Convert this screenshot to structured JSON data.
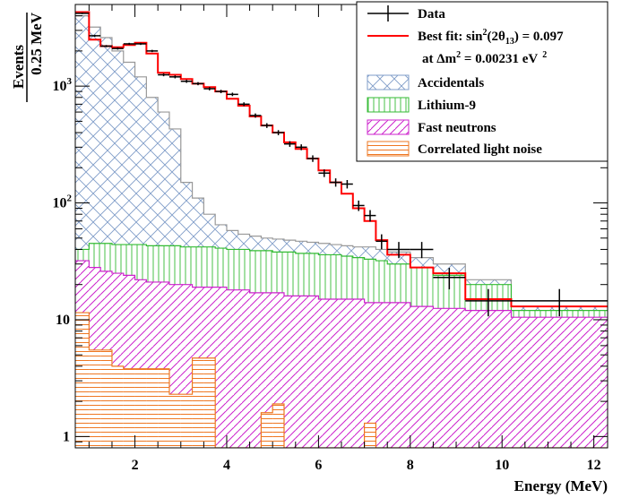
{
  "chart_data": {
    "type": "stacked-histogram",
    "xlabel": "Energy (MeV)",
    "ylabel_numerator": "Events",
    "ylabel_denominator": "0.25 MeV",
    "x_ticks": [
      "2",
      "4",
      "6",
      "8",
      "10",
      "12"
    ],
    "y_ticks": [
      "1",
      "10",
      "10",
      "10"
    ],
    "y_tick_exponents": [
      "",
      "",
      "2",
      "3"
    ],
    "xlim": [
      0.7,
      12.3
    ],
    "ylim": [
      0.8,
      5000
    ],
    "y_scale": "log",
    "grid": false,
    "legend_position": "top-right",
    "legend": {
      "data": "Data",
      "fit_line1_prefix": "Best fit: sin",
      "fit_line1_sup": "2",
      "fit_line1_mid": "(2θ",
      "fit_line1_sub": "13",
      "fit_line1_suffix": ") = 0.097",
      "fit_line2_prefix": "at Δm",
      "fit_line2_sup": "2",
      "fit_line2_mid": " = 0.00231 eV",
      "fit_line2_sup2": "2",
      "accidentals": "Accidentals",
      "lithium": "Lithium-9",
      "fastn": "Fast neutrons",
      "light": "Correlated light noise"
    },
    "colors": {
      "accidentals": "#7f9cc8",
      "lithium": "#33bb33",
      "fast_neutrons": "#cc22cc",
      "light_noise": "#ee7722",
      "fit": "#ff0000",
      "data": "#000000"
    },
    "bin_edges": [
      0.7,
      1.0,
      1.25,
      1.5,
      1.75,
      2.0,
      2.25,
      2.5,
      2.75,
      3.0,
      3.25,
      3.5,
      3.75,
      4.0,
      4.25,
      4.5,
      4.75,
      5.0,
      5.25,
      5.5,
      5.75,
      6.0,
      6.25,
      6.5,
      6.75,
      7.0,
      7.25,
      7.5,
      8.0,
      8.5,
      9.2,
      10.2,
      12.3
    ],
    "light_noise": [
      11.5,
      5.5,
      5.5,
      4.0,
      3.8,
      3.8,
      3.8,
      3.8,
      2.3,
      2.3,
      4.7,
      4.7,
      0.8,
      0.8,
      0.8,
      0.8,
      1.6,
      1.9,
      0.8,
      0.8,
      0.8,
      0.8,
      0.8,
      0.8,
      0.8,
      1.3,
      0.8,
      0.8,
      0.8,
      0.8,
      0.8,
      0.8
    ],
    "fast_neutrons": [
      32,
      28,
      26,
      25,
      24,
      22,
      21,
      21,
      20,
      20,
      19,
      19,
      19,
      18,
      18,
      17,
      17,
      17,
      16,
      16,
      16,
      15,
      15,
      15,
      15,
      14,
      14,
      14,
      13,
      12.5,
      12,
      10.5
    ],
    "lithium_9": [
      40,
      45,
      45,
      44,
      44,
      44,
      43,
      43,
      43,
      42,
      42,
      42,
      41,
      40,
      40,
      39,
      39,
      38,
      38,
      37,
      37,
      36,
      36,
      35,
      34,
      33,
      32,
      30,
      28,
      24,
      20,
      12
    ],
    "accidentals_top": [
      4000,
      3200,
      2600,
      2000,
      1600,
      1200,
      800,
      600,
      430,
      150,
      110,
      80,
      65,
      58,
      54,
      52,
      50,
      49,
      48,
      47,
      46,
      45,
      44,
      43,
      42,
      42,
      40,
      38,
      34,
      30,
      22,
      13
    ],
    "best_fit": [
      4300,
      2500,
      2200,
      2150,
      2250,
      2350,
      1900,
      1300,
      1250,
      1150,
      1050,
      980,
      900,
      780,
      680,
      550,
      460,
      400,
      330,
      290,
      240,
      190,
      150,
      120,
      90,
      70,
      48,
      36,
      28,
      25,
      15,
      13
    ],
    "data_points": {
      "x": [
        0.85,
        1.125,
        1.375,
        1.625,
        1.875,
        2.125,
        2.375,
        2.625,
        2.875,
        3.125,
        3.375,
        3.625,
        3.875,
        4.125,
        4.375,
        4.625,
        4.875,
        5.125,
        5.375,
        5.625,
        5.875,
        6.125,
        6.375,
        6.625,
        6.875,
        7.125,
        7.375,
        7.75,
        8.25,
        8.85,
        9.7,
        11.25
      ],
      "y": [
        4200,
        2700,
        2200,
        2100,
        2300,
        2300,
        2000,
        1250,
        1200,
        1100,
        1050,
        950,
        900,
        850,
        700,
        560,
        460,
        400,
        320,
        300,
        240,
        180,
        150,
        145,
        95,
        78,
        47,
        40,
        40,
        23,
        14.5,
        14.5
      ],
      "xerr": [
        0.15,
        0.125,
        0.125,
        0.125,
        0.125,
        0.125,
        0.125,
        0.125,
        0.125,
        0.125,
        0.125,
        0.125,
        0.125,
        0.125,
        0.125,
        0.125,
        0.125,
        0.125,
        0.125,
        0.125,
        0.125,
        0.125,
        0.125,
        0.125,
        0.125,
        0.125,
        0.125,
        0.25,
        0.25,
        0.35,
        0.5,
        1.05
      ]
    }
  }
}
